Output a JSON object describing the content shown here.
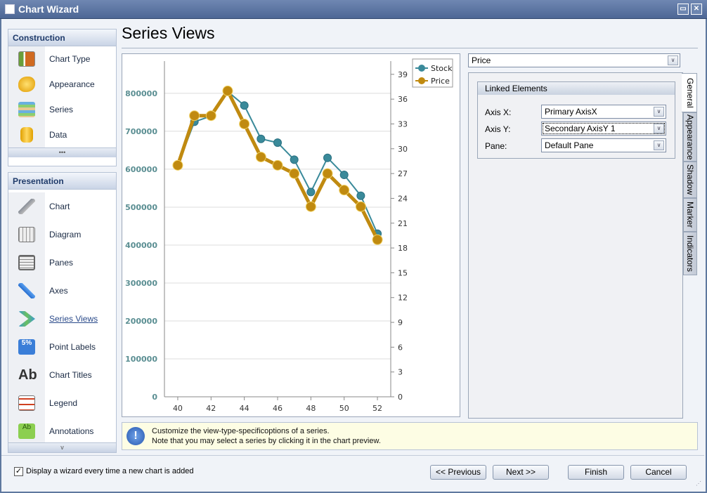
{
  "window": {
    "title": "Chart Wizard",
    "minimize": "▭",
    "close": "✕"
  },
  "sidebar": {
    "construction": {
      "title": "Construction",
      "items": [
        {
          "label": "Chart Type",
          "icon": "chart-type-icon"
        },
        {
          "label": "Appearance",
          "icon": "appearance-icon"
        },
        {
          "label": "Series",
          "icon": "series-icon"
        },
        {
          "label": "Data",
          "icon": "data-icon"
        }
      ],
      "more": "•••"
    },
    "presentation": {
      "title": "Presentation",
      "items": [
        {
          "label": "Chart",
          "icon": "wrench-icon"
        },
        {
          "label": "Diagram",
          "icon": "diagram-icon"
        },
        {
          "label": "Panes",
          "icon": "panes-icon"
        },
        {
          "label": "Axes",
          "icon": "axes-arrow-icon"
        },
        {
          "label": "Series Views",
          "icon": "series-views-icon",
          "selected": true
        },
        {
          "label": "Point Labels",
          "icon": "point-labels-icon",
          "badge": "5%"
        },
        {
          "label": "Chart Titles",
          "icon": "chart-titles-icon",
          "badge": "Ab"
        },
        {
          "label": "Legend",
          "icon": "legend-icon"
        },
        {
          "label": "Annotations",
          "icon": "annotations-icon",
          "badge": "Ab"
        }
      ],
      "more": "v"
    }
  },
  "main": {
    "title": "Series Views"
  },
  "chart_data": {
    "type": "line",
    "x": [
      40,
      41,
      42,
      43,
      44,
      45,
      46,
      47,
      48,
      49,
      50,
      51,
      52
    ],
    "xticks": [
      40,
      42,
      44,
      46,
      48,
      50,
      52
    ],
    "xlim": [
      39.2,
      52.8
    ],
    "primary_y": {
      "lim": [
        0,
        885000
      ],
      "ticks": [
        0,
        100000,
        200000,
        300000,
        400000,
        500000,
        600000,
        700000,
        800000
      ]
    },
    "secondary_y": {
      "lim": [
        0,
        40.6
      ],
      "ticks": [
        0,
        3,
        6,
        9,
        12,
        15,
        18,
        21,
        24,
        27,
        30,
        33,
        36,
        39
      ]
    },
    "grid": true,
    "legend": "top-right",
    "series": [
      {
        "name": "Stock",
        "axis": "primary",
        "color": "#3a8a9a",
        "values": [
          610000,
          725000,
          740000,
          805000,
          768000,
          680000,
          670000,
          625000,
          540000,
          630000,
          585000,
          530000,
          430000
        ]
      },
      {
        "name": "Price",
        "axis": "secondary",
        "color": "#c08a10",
        "values": [
          28,
          34,
          34,
          37,
          33,
          29,
          28,
          27,
          23,
          27,
          25,
          23,
          19
        ]
      }
    ]
  },
  "props": {
    "series_select": "Price",
    "group_title": "Linked Elements",
    "fields": [
      {
        "label": "Axis X:",
        "value": "Primary AxisX"
      },
      {
        "label": "Axis Y:",
        "value": "Secondary AxisY 1"
      },
      {
        "label": "Pane:",
        "value": "Default Pane"
      }
    ],
    "tabs": [
      "General",
      "Appearance",
      "Shadow",
      "Marker",
      "Indicators"
    ],
    "active_tab": "General"
  },
  "info": {
    "line1": "Customize the view-type-specificoptions of a series.",
    "line2": "Note that you may select a series by clicking it in the chart preview.",
    "icon": "!"
  },
  "footer": {
    "checkbox_label": "Display a wizard every time a new chart is added",
    "checked": true,
    "previous": "<< Previous",
    "next": "Next >>",
    "finish": "Finish",
    "cancel": "Cancel"
  }
}
